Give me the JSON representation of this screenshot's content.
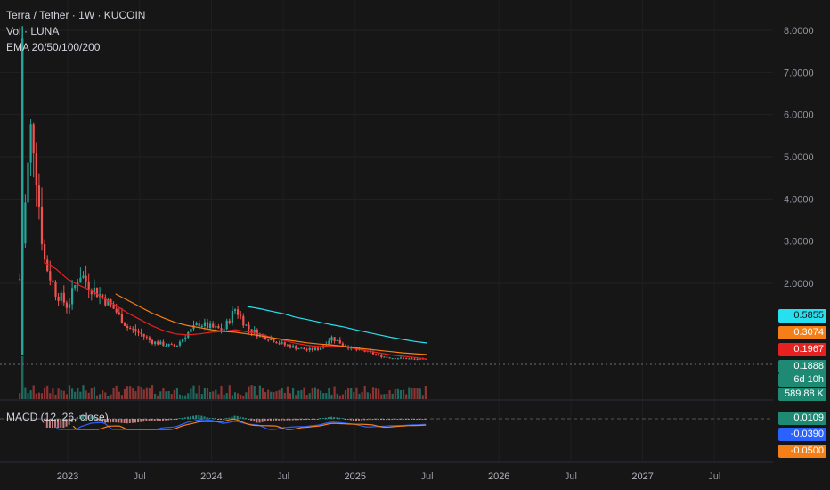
{
  "legend": {
    "symbol_line": "Terra / Tether · 1W · KUCOIN",
    "volume_line": "Vol · LUNA",
    "ema_line": "EMA 20/50/100/200",
    "macd_line": "MACD (12, 26, close)"
  },
  "price_axis": {
    "ticks": [
      "8.0000",
      "7.0000",
      "6.0000",
      "5.0000",
      "4.0000",
      "3.0000",
      "2.0000"
    ]
  },
  "time_axis": {
    "labels": [
      "2023",
      "Jul",
      "2024",
      "Jul",
      "2025",
      "Jul",
      "2026",
      "Jul",
      "2027",
      "Jul"
    ]
  },
  "price_tags": {
    "ema200": {
      "text": "0.5855",
      "color": "#26e0f0",
      "text_color": "#111111"
    },
    "ema100": {
      "text": "0.3074",
      "color": "#f57f17",
      "text_color": "#ffffff"
    },
    "ema50": {
      "text": "0.1967",
      "color": "#e6211f",
      "text_color": "#ffffff"
    },
    "last": {
      "text": "0.1888",
      "color": "#1e8a74",
      "text_color": "#ffffff"
    },
    "countdown": {
      "text": "6d 10h",
      "color": "#1e8a74",
      "text_color": "#ffffff"
    },
    "volume": {
      "text": "589.88 K",
      "color": "#1e8a74",
      "text_color": "#ffffff"
    },
    "macd_hist": {
      "text": "0.0109",
      "color": "#1e8a74",
      "text_color": "#ffffff"
    },
    "macd_line": {
      "text": "-0.0390",
      "color": "#2962ff",
      "text_color": "#ffffff"
    },
    "macd_signal": {
      "text": "-0.0500",
      "color": "#f57f17",
      "text_color": "#ffffff"
    }
  },
  "chart_data": {
    "type": "line",
    "title": "Terra / Tether · 1W · KUCOIN",
    "xlabel": "",
    "ylabel": "",
    "ylim": [
      0,
      8.3
    ],
    "x": [
      "2022-09",
      "2022-10",
      "2022-11",
      "2022-12",
      "2023-01",
      "2023-02",
      "2023-03",
      "2023-04",
      "2023-05",
      "2023-06",
      "2023-07",
      "2023-08",
      "2023-09",
      "2023-10",
      "2023-11",
      "2023-12",
      "2024-01",
      "2024-02",
      "2024-03",
      "2024-04",
      "2024-05",
      "2024-06",
      "2024-07",
      "2024-08",
      "2024-09",
      "2024-10",
      "2024-11",
      "2024-12",
      "2025-01",
      "2025-02",
      "2025-03",
      "2025-04",
      "2025-05",
      "2025-06",
      "2025-07"
    ],
    "series": [
      {
        "name": "LUNA close",
        "color": "#26a69a",
        "values": [
          2.1,
          5.9,
          2.6,
          1.8,
          1.45,
          2.25,
          1.9,
          1.65,
          1.35,
          0.95,
          0.82,
          0.62,
          0.55,
          0.5,
          0.82,
          1.05,
          0.95,
          0.9,
          1.4,
          0.95,
          0.78,
          0.68,
          0.55,
          0.48,
          0.42,
          0.45,
          0.72,
          0.55,
          0.42,
          0.38,
          0.28,
          0.23,
          0.22,
          0.2,
          0.19
        ]
      },
      {
        "name": "EMA 20",
        "color": "#e6211f",
        "values": [
          null,
          null,
          2.5,
          2.35,
          2.1,
          1.95,
          1.82,
          1.65,
          1.48,
          1.3,
          1.15,
          1.0,
          0.88,
          0.8,
          0.78,
          0.8,
          0.84,
          0.86,
          0.9,
          0.85,
          0.8,
          0.72,
          0.65,
          0.58,
          0.53,
          0.5,
          0.52,
          0.5,
          0.45,
          0.4,
          0.35,
          0.3,
          0.27,
          0.24,
          0.2
        ]
      },
      {
        "name": "EMA 100",
        "color": "#f57f17",
        "values": [
          null,
          null,
          null,
          null,
          null,
          null,
          null,
          null,
          1.75,
          1.6,
          1.45,
          1.3,
          1.18,
          1.07,
          1.0,
          0.95,
          0.9,
          0.86,
          0.84,
          0.8,
          0.76,
          0.71,
          0.67,
          0.63,
          0.59,
          0.56,
          0.54,
          0.51,
          0.47,
          0.44,
          0.41,
          0.38,
          0.35,
          0.33,
          0.31
        ]
      },
      {
        "name": "EMA 200",
        "color": "#26e0f0",
        "values": [
          null,
          null,
          null,
          null,
          null,
          null,
          null,
          null,
          null,
          null,
          null,
          null,
          null,
          null,
          null,
          null,
          null,
          null,
          null,
          1.45,
          1.4,
          1.34,
          1.28,
          1.2,
          1.14,
          1.08,
          1.02,
          0.97,
          0.9,
          0.84,
          0.78,
          0.72,
          0.67,
          0.62,
          0.585
        ]
      }
    ],
    "grid": true,
    "legend": "top-left"
  }
}
